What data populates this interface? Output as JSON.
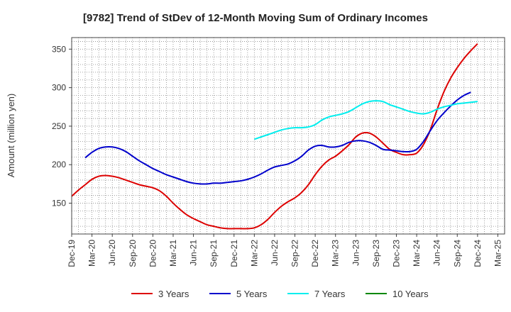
{
  "chart_data": {
    "type": "line",
    "title": "[9782]  Trend of StDev of 12-Month Moving Sum of Ordinary Incomes",
    "ylabel": "Amount (million yen)",
    "xlabel": "",
    "ylim": [
      110,
      365
    ],
    "yticks": [
      150,
      200,
      250,
      300,
      350
    ],
    "xlim": [
      0,
      64
    ],
    "xtick_labels": [
      "Dec-19",
      "Mar-20",
      "Jun-20",
      "Sep-20",
      "Dec-20",
      "Mar-21",
      "Jun-21",
      "Sep-21",
      "Dec-21",
      "Mar-22",
      "Jun-22",
      "Sep-22",
      "Dec-22",
      "Mar-23",
      "Jun-23",
      "Sep-23",
      "Dec-23",
      "Mar-24",
      "Jun-24",
      "Sep-24",
      "Dec-24",
      "Mar-25"
    ],
    "grid": true,
    "legend_position": "bottom",
    "series": [
      {
        "name": "3 Years",
        "color": "#dd0000",
        "x_start": 0,
        "values": [
          159,
          167,
          174,
          181,
          185,
          186,
          185,
          183,
          180,
          177,
          174,
          172,
          170,
          166,
          159,
          150,
          142,
          135,
          130,
          126,
          122,
          120,
          118,
          117,
          117,
          117,
          117,
          118,
          122,
          129,
          138,
          146,
          152,
          157,
          164,
          174,
          187,
          198,
          206,
          211,
          218,
          226,
          236,
          241,
          241,
          236,
          228,
          220,
          216,
          213,
          213,
          215,
          226,
          245,
          271,
          294,
          312,
          326,
          338,
          348,
          357
        ]
      },
      {
        "name": "5 Years",
        "color": "#0000cc",
        "x_start": 2,
        "values": [
          209,
          216,
          221,
          223,
          223,
          221,
          217,
          211,
          205,
          200,
          195,
          191,
          187,
          184,
          181,
          178,
          176,
          175,
          175,
          176,
          176,
          177,
          178,
          179,
          181,
          184,
          188,
          193,
          197,
          199,
          201,
          205,
          211,
          219,
          224,
          225,
          223,
          223,
          225,
          229,
          231,
          231,
          229,
          225,
          220,
          219,
          218,
          217,
          217,
          220,
          230,
          244,
          257,
          267,
          276,
          284,
          290,
          294
        ]
      },
      {
        "name": "7 Years",
        "color": "#00eeee",
        "x_start": 27,
        "values": [
          233,
          236,
          239,
          242,
          245,
          247,
          248,
          248,
          249,
          252,
          258,
          262,
          264,
          266,
          269,
          274,
          279,
          282,
          283,
          282,
          278,
          275,
          272,
          269,
          267,
          266,
          268,
          272,
          275,
          277,
          279,
          280,
          281,
          282
        ]
      },
      {
        "name": "10 Years",
        "color": "#008800",
        "x_start": 0,
        "values": []
      }
    ]
  }
}
